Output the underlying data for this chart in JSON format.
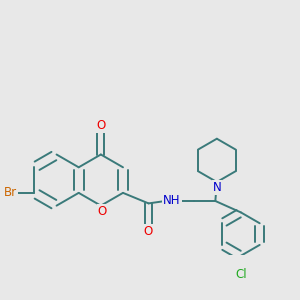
{
  "bg_color": "#e8e8e8",
  "bond_color": "#3a7a7a",
  "bond_width": 1.4,
  "atom_colors": {
    "O": "#ee0000",
    "N": "#0000cc",
    "Br": "#cc6600",
    "Cl": "#22aa22",
    "H": "#555555"
  },
  "font_size": 8.5
}
